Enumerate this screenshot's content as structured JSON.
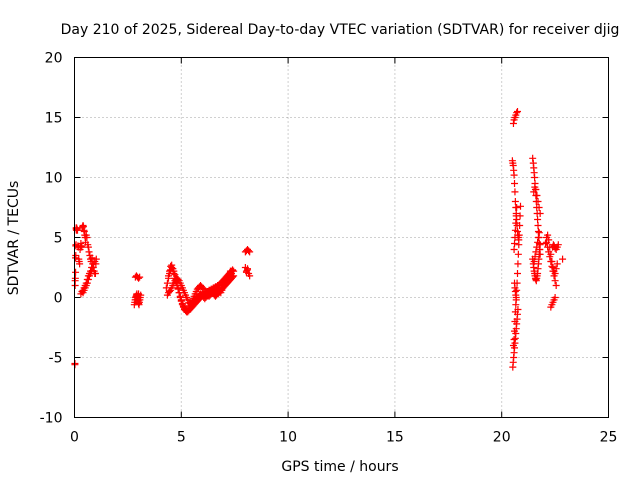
{
  "chart_data": {
    "type": "scatter",
    "title": "Day 210 of 2025, Sidereal Day-to-day VTEC variation (SDTVAR) for receiver djig",
    "xlabel": "GPS time / hours",
    "ylabel": "SDTVAR / TECUs",
    "xlim": [
      0,
      25
    ],
    "ylim": [
      -10,
      20
    ],
    "xticks": [
      0,
      5,
      10,
      15,
      20,
      25
    ],
    "yticks": [
      -10,
      -5,
      0,
      5,
      10,
      15,
      20
    ],
    "grid": true,
    "marker": "plus",
    "series": [
      {
        "name": "SDTVAR",
        "color": "#ff0000",
        "x": [
          0.02,
          0.02,
          0.03,
          0.03,
          0.04,
          0.05,
          0.05,
          0.06,
          0.06,
          0.07,
          0.08,
          0.08,
          0.09,
          0.1,
          0.12,
          0.14,
          0.16,
          0.18,
          0.2,
          0.22,
          0.24,
          0.26,
          0.28,
          0.3,
          0.32,
          0.34,
          0.36,
          0.38,
          0.4,
          0.42,
          0.44,
          0.46,
          0.48,
          0.5,
          0.52,
          0.55,
          0.58,
          0.62,
          0.65,
          0.68,
          0.72,
          0.75,
          0.78,
          0.82,
          0.85,
          0.88,
          0.92,
          0.95,
          0.98,
          1.0,
          1.02,
          0.4,
          0.45,
          0.5,
          0.55,
          0.6,
          0.65,
          0.7,
          0.75,
          0.8,
          0.85,
          0.9,
          0.95,
          0.3,
          0.35,
          0.4,
          0.45,
          0.5,
          0.55,
          0.6,
          0.65,
          0.7,
          0.75,
          0.8,
          2.8,
          2.82,
          2.84,
          2.86,
          2.88,
          2.9,
          2.92,
          2.94,
          2.96,
          2.98,
          3.0,
          3.02,
          3.04,
          3.06,
          3.08,
          3.1,
          2.85,
          2.9,
          2.95,
          3.0,
          3.05,
          2.88,
          2.92,
          2.96,
          3.0,
          4.3,
          4.35,
          4.4,
          4.45,
          4.5,
          4.55,
          4.6,
          4.65,
          4.7,
          4.75,
          4.8,
          4.85,
          4.9,
          4.95,
          5.0,
          5.05,
          5.1,
          5.15,
          5.2,
          5.25,
          5.3,
          5.35,
          5.4,
          5.45,
          5.5,
          5.55,
          5.6,
          5.65,
          5.7,
          5.75,
          5.8,
          5.85,
          5.9,
          5.95,
          6.0,
          6.05,
          6.1,
          6.15,
          6.2,
          6.25,
          6.3,
          6.35,
          6.4,
          6.45,
          6.5,
          6.55,
          6.6,
          6.65,
          6.7,
          6.75,
          6.8,
          6.85,
          6.9,
          6.95,
          7.0,
          7.05,
          7.1,
          7.15,
          7.2,
          7.25,
          7.3,
          7.35,
          7.4,
          7.45,
          4.4,
          4.45,
          4.5,
          4.55,
          4.6,
          4.65,
          4.7,
          4.75,
          4.8,
          4.85,
          4.9,
          4.95,
          5.0,
          5.05,
          5.1,
          5.15,
          5.2,
          5.25,
          5.3,
          5.35,
          5.4,
          5.45,
          5.5,
          5.55,
          5.6,
          5.65,
          5.7,
          5.75,
          5.8,
          5.85,
          5.9,
          5.95,
          6.0,
          6.05,
          6.1,
          6.15,
          6.2,
          6.25,
          6.3,
          6.35,
          6.4,
          6.45,
          6.5,
          6.55,
          6.6,
          6.65,
          6.7,
          6.75,
          6.8,
          6.85,
          6.9,
          6.95,
          7.0,
          7.05,
          7.1,
          7.15,
          7.2,
          7.25,
          7.3,
          7.35,
          4.35,
          4.4,
          4.45,
          4.5,
          4.55,
          4.6,
          4.65,
          4.7,
          4.75,
          4.8,
          4.85,
          4.9,
          4.95,
          5.0,
          5.05,
          5.1,
          5.15,
          5.2,
          5.25,
          5.3,
          5.35,
          5.4,
          5.45,
          5.5,
          5.55,
          5.6,
          5.65,
          5.7,
          5.75,
          5.8,
          5.85,
          5.9,
          5.95,
          6.0,
          6.05,
          6.1,
          6.15,
          6.2,
          6.25,
          6.3,
          6.35,
          6.4,
          6.45,
          6.5,
          6.55,
          6.6,
          6.65,
          6.7,
          6.75,
          6.8,
          6.85,
          6.9,
          6.95,
          7.0,
          7.05,
          7.1,
          7.15,
          7.2,
          7.25,
          7.3,
          7.35,
          7.4,
          7.45,
          8.0,
          8.05,
          8.1,
          8.15,
          8.2,
          8.05,
          8.1,
          8.15,
          8.2,
          8.0,
          8.05,
          8.1,
          20.5,
          20.52,
          20.54,
          20.56,
          20.58,
          20.6,
          20.62,
          20.64,
          20.66,
          20.68,
          20.7,
          20.72,
          20.74,
          20.76,
          20.78,
          20.8,
          20.55,
          20.58,
          20.62,
          20.66,
          20.7,
          20.74,
          20.52,
          20.54,
          20.56,
          20.58,
          20.6,
          20.62,
          20.64,
          20.66,
          20.68,
          20.7,
          20.72,
          20.74,
          20.76,
          20.6,
          20.62,
          20.64,
          20.66,
          20.68,
          20.58,
          20.6,
          20.62,
          20.64,
          20.66,
          20.68,
          20.7,
          20.55,
          20.58,
          20.6,
          20.62,
          20.64,
          20.66,
          20.68,
          20.7,
          20.72,
          20.74,
          20.76,
          20.78,
          20.8,
          20.82,
          20.84,
          20.86,
          20.88,
          21.45,
          21.48,
          21.5,
          21.52,
          21.54,
          21.56,
          21.58,
          21.6,
          21.62,
          21.64,
          21.66,
          21.68,
          21.7,
          21.72,
          21.74,
          21.76,
          21.78,
          21.8,
          21.45,
          21.48,
          21.5,
          21.52,
          21.54,
          21.56,
          21.58,
          21.6,
          21.62,
          21.64,
          21.66,
          21.68,
          21.7,
          21.72,
          21.74,
          21.76,
          21.78,
          21.8,
          21.5,
          21.55,
          21.6,
          21.65,
          21.7,
          21.75,
          21.8,
          21.52,
          21.56,
          21.6,
          21.64,
          21.68,
          21.72,
          21.76,
          22.05,
          22.1,
          22.15,
          22.2,
          22.25,
          22.3,
          22.35,
          22.4,
          22.45,
          22.5,
          22.55,
          22.6,
          22.1,
          22.15,
          22.2,
          22.25,
          22.3,
          22.35,
          22.4,
          22.45,
          22.5,
          22.55,
          22.3,
          22.35,
          22.4,
          22.45,
          22.5,
          22.38,
          22.42,
          22.46,
          22.5,
          22.55,
          22.6,
          22.65,
          22.85
        ],
        "y": [
          -5.6,
          -5.5,
          1.0,
          1.4,
          1.6,
          2.1,
          3.3,
          3.5,
          4.3,
          4.4,
          5.7,
          5.8,
          5.6,
          5.8,
          5.7,
          5.6,
          4.3,
          4.2,
          3.2,
          3.0,
          2.8,
          4.0,
          4.2,
          4.5,
          4.3,
          4.2,
          5.8,
          5.9,
          6.0,
          5.9,
          5.6,
          5.5,
          5.2,
          5.0,
          4.6,
          5.2,
          5.0,
          4.4,
          4.2,
          3.8,
          3.5,
          3.2,
          3.0,
          3.3,
          2.8,
          2.5,
          2.2,
          2.0,
          2.0,
          2.8,
          3.2,
          0.4,
          0.6,
          0.8,
          1.0,
          1.2,
          1.5,
          1.8,
          2.0,
          2.2,
          2.5,
          2.8,
          3.0,
          0.3,
          0.5,
          0.6,
          0.8,
          1.0,
          1.2,
          1.5,
          1.8,
          2.0,
          2.2,
          2.5,
          -0.6,
          -0.4,
          -0.2,
          0.0,
          0.1,
          0.2,
          0.3,
          0.1,
          -0.1,
          -0.3,
          -0.5,
          -0.6,
          -0.4,
          -0.2,
          0.0,
          0.2,
          1.7,
          1.8,
          1.7,
          1.6,
          1.7,
          -0.2,
          0.0,
          0.1,
          0.3,
          0.8,
          1.2,
          1.6,
          2.0,
          2.3,
          2.5,
          2.4,
          2.2,
          1.9,
          1.6,
          1.2,
          0.8,
          0.4,
          0.0,
          -0.3,
          -0.6,
          -0.8,
          -1.0,
          -1.1,
          -1.2,
          -1.2,
          -1.1,
          -1.0,
          -0.9,
          -0.8,
          -0.7,
          -0.6,
          -0.5,
          -0.4,
          -0.3,
          -0.2,
          -0.1,
          0.0,
          0.1,
          0.2,
          0.2,
          0.3,
          0.4,
          0.5,
          0.5,
          0.6,
          0.6,
          0.7,
          0.7,
          0.8,
          0.8,
          0.9,
          0.9,
          1.0,
          1.0,
          1.1,
          1.2,
          1.3,
          1.4,
          1.5,
          1.6,
          1.7,
          1.8,
          1.9,
          2.0,
          2.1,
          2.2,
          2.3,
          2.2,
          1.8,
          2.2,
          2.6,
          2.7,
          2.4,
          2.0,
          1.6,
          1.3,
          1.0,
          0.7,
          0.4,
          0.1,
          -0.2,
          -0.5,
          -0.7,
          -0.9,
          -1.0,
          -1.1,
          -1.0,
          -0.9,
          -0.7,
          -0.5,
          -0.3,
          -0.1,
          0.1,
          0.3,
          0.5,
          0.7,
          0.8,
          0.9,
          1.0,
          0.9,
          0.8,
          0.7,
          0.5,
          0.4,
          0.3,
          0.2,
          0.1,
          0.2,
          0.3,
          0.4,
          0.5,
          0.6,
          0.7,
          0.8,
          0.7,
          0.6,
          0.5,
          0.4,
          0.6,
          0.8,
          1.0,
          1.2,
          1.4,
          1.6,
          1.8,
          2.0,
          2.2,
          2.0,
          0.2,
          0.4,
          0.5,
          0.6,
          0.8,
          1.0,
          1.2,
          1.4,
          1.5,
          1.6,
          1.5,
          1.4,
          1.2,
          1.0,
          0.8,
          0.6,
          0.4,
          0.2,
          0.0,
          -0.2,
          -0.4,
          -0.5,
          -0.6,
          -0.5,
          -0.4,
          -0.3,
          -0.2,
          -0.1,
          0.0,
          0.1,
          0.2,
          0.3,
          0.2,
          0.1,
          0.0,
          -0.1,
          0.0,
          0.1,
          0.2,
          0.3,
          0.4,
          0.5,
          0.4,
          0.3,
          0.2,
          0.1,
          0.2,
          0.3,
          0.4,
          0.5,
          0.6,
          0.7,
          0.8,
          0.9,
          1.0,
          1.1,
          1.2,
          1.3,
          1.4,
          1.5,
          1.6,
          1.7,
          1.8,
          3.8,
          3.9,
          4.0,
          3.9,
          3.8,
          2.2,
          2.4,
          2.0,
          1.8,
          2.5,
          2.1,
          2.3,
          11.4,
          11.2,
          11.0,
          10.6,
          10.2,
          9.5,
          8.8,
          8.0,
          7.5,
          7.0,
          6.5,
          6.0,
          5.5,
          5.2,
          5.0,
          4.8,
          14.5,
          14.8,
          15.0,
          15.2,
          15.4,
          15.5,
          -5.8,
          -5.4,
          -5.0,
          -4.6,
          -4.2,
          -3.8,
          -3.4,
          -3.0,
          -2.6,
          -2.2,
          -1.8,
          -1.4,
          -1.0,
          1.2,
          0.8,
          0.5,
          0.2,
          -0.2,
          4.0,
          4.5,
          5.0,
          5.6,
          6.2,
          6.8,
          7.5,
          -4.0,
          -3.5,
          -2.8,
          -2.0,
          -1.2,
          -0.6,
          0.0,
          0.6,
          1.2,
          2.0,
          2.8,
          3.6,
          4.4,
          5.2,
          6.0,
          6.8,
          7.6,
          11.6,
          11.2,
          10.8,
          10.4,
          10.0,
          9.5,
          9.0,
          8.5,
          8.0,
          7.5,
          7.0,
          6.5,
          6.0,
          5.5,
          5.0,
          4.5,
          4.0,
          3.6,
          3.2,
          2.8,
          2.5,
          2.2,
          2.0,
          1.8,
          1.6,
          1.5,
          1.4,
          1.6,
          1.8,
          2.0,
          2.4,
          2.8,
          3.2,
          3.6,
          4.0,
          4.4,
          8.8,
          9.2,
          9.0,
          8.5,
          8.0,
          7.5,
          7.0,
          3.0,
          3.4,
          3.8,
          4.2,
          4.6,
          5.0,
          5.4,
          4.5,
          5.0,
          5.2,
          4.8,
          4.2,
          3.6,
          3.0,
          2.5,
          2.2,
          2.0,
          2.4,
          2.8,
          4.6,
          4.2,
          3.8,
          3.4,
          3.0,
          2.6,
          2.2,
          1.8,
          1.4,
          1.0,
          -0.8,
          -0.6,
          -0.4,
          -0.2,
          0.0,
          4.2,
          4.4,
          4.3,
          4.1,
          4.0,
          4.2,
          4.4,
          3.2
        ]
      }
    ]
  }
}
